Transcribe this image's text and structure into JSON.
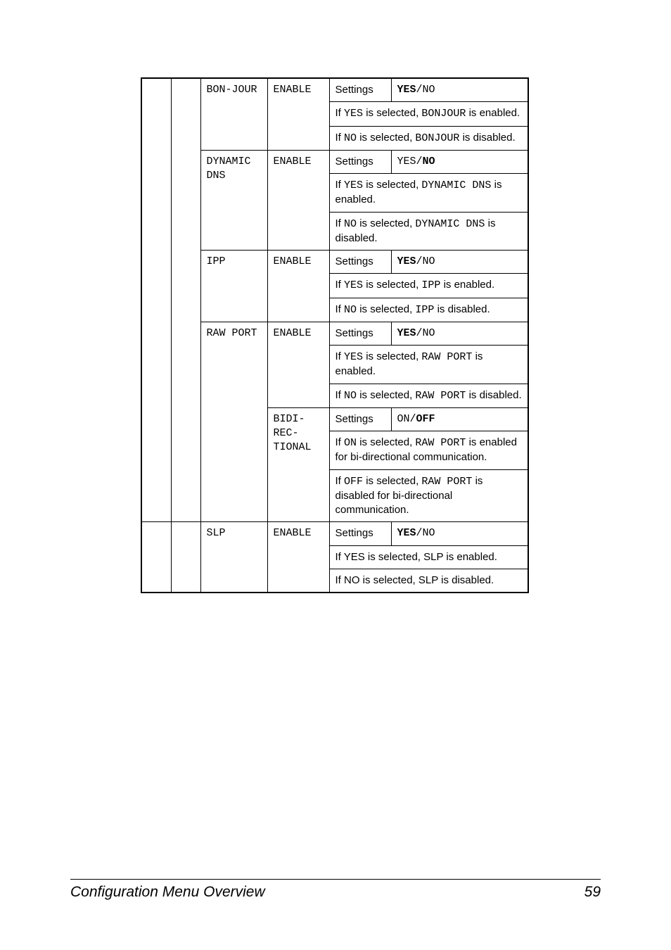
{
  "footer": {
    "title": "Configuration Menu Overview",
    "page": "59"
  },
  "table": {
    "settings_label": "Settings",
    "bonjour": {
      "name": "BON-JOUR",
      "col4": "ENABLE",
      "opts_pre": "YES",
      "opts_post": "/NO",
      "desc1_a": "If ",
      "desc1_b": "YES",
      "desc1_c": " is selected, ",
      "desc1_d": "BONJOUR",
      "desc1_e": " is enabled.",
      "desc2_a": "If ",
      "desc2_b": "NO",
      "desc2_c": " is selected, ",
      "desc2_d": "BONJOUR",
      "desc2_e": " is disabled."
    },
    "dyndns": {
      "name": "DYNAMIC DNS",
      "col4": "ENABLE",
      "opts_pre": "YES/",
      "opts_post": "NO",
      "desc1_a": "If ",
      "desc1_b": "YES",
      "desc1_c": " is selected, ",
      "desc1_d": "DYNAMIC DNS",
      "desc1_e": " is enabled.",
      "desc2_a": "If ",
      "desc2_b": "NO",
      "desc2_c": " is selected, ",
      "desc2_d": "DYNAMIC DNS",
      "desc2_e": " is disabled."
    },
    "ipp": {
      "name": "IPP",
      "col4": "ENABLE",
      "opts_pre": "YES",
      "opts_post": "/NO",
      "desc1_a": "If ",
      "desc1_b": "YES",
      "desc1_c": " is selected, ",
      "desc1_d": "IPP",
      "desc1_e": " is enabled.",
      "desc2_a": "If ",
      "desc2_b": "NO",
      "desc2_c": " is selected, ",
      "desc2_d": "IPP",
      "desc2_e": " is disabled."
    },
    "raw": {
      "name": "RAW PORT",
      "enable": {
        "col4": "ENABLE",
        "opts_pre": "YES",
        "opts_post": "/NO",
        "desc1_a": "If ",
        "desc1_b": "YES",
        "desc1_c": " is selected, ",
        "desc1_d": "RAW PORT",
        "desc1_e": " is enabled.",
        "desc2_a": "If ",
        "desc2_b": "NO",
        "desc2_c": " is selected, ",
        "desc2_d": "RAW PORT",
        "desc2_e": " is disabled."
      },
      "bidi": {
        "col4": "BIDI-REC-TIONAL",
        "opts_pre": "ON/",
        "opts_post": "OFF",
        "desc1_a": "If ",
        "desc1_b": "ON",
        "desc1_c": " is selected, ",
        "desc1_d": "RAW PORT",
        "desc1_e": " is enabled for bi-directional communication.",
        "desc2_a": "If ",
        "desc2_b": "OFF",
        "desc2_c": " is selected, ",
        "desc2_d": "RAW PORT",
        "desc2_e": " is disabled for bi-directional communication."
      }
    },
    "slp": {
      "name": "SLP",
      "col4": "ENABLE",
      "opts_pre": "YES",
      "opts_post": "/NO",
      "desc1": "If YES is selected, SLP is enabled.",
      "desc2": "If NO is selected, SLP is disabled."
    }
  }
}
